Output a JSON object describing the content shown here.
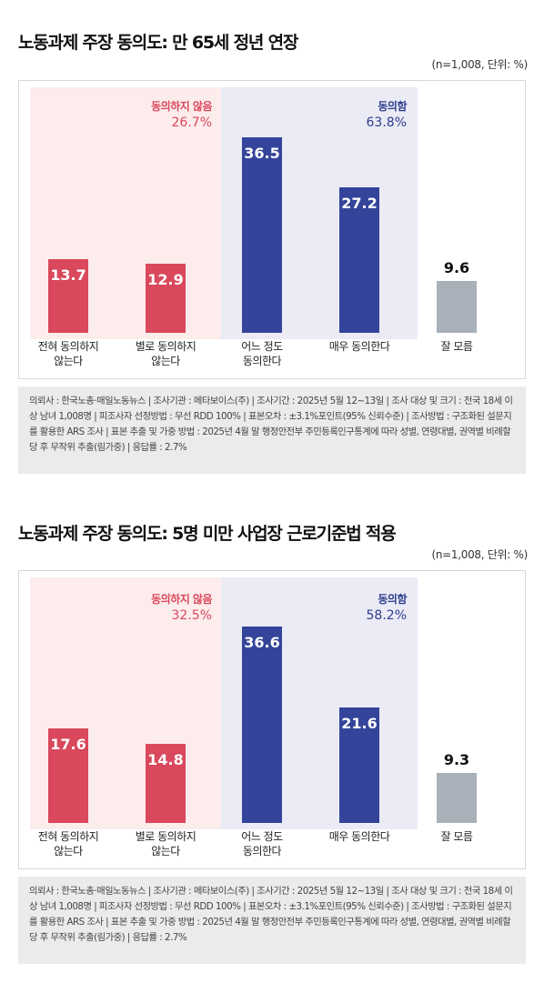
{
  "charts": [
    {
      "title": "노동과제 주장 동의도: 만 65세 정년 연장",
      "unit": "(n=1,008, 단위: %)",
      "disagree": {
        "label": "동의하지 않음",
        "pct": "26.7%"
      },
      "agree": {
        "label": "동의함",
        "pct": "63.8%"
      },
      "note": "의뢰사 : 한국노총·매일노동뉴스 | 조사기관 : 메타보이스(주) | 조사기간 : 2025년 5월 12~13일 | 조사 대상 및 크기 : 전국 18세 이상 남녀 1,008명 | 피조사자 선정방법 : 무선 RDD 100% | 표본오차 : ±3.1%포인트(95% 신뢰수준) | 조사방법 : 구조화된 설문지를 활용한 ARS 조사 | 표본 추출 및 가중 방법 : 2025년 4월 말 행정안전부 주민등록인구통계에 따라 성별, 연령대별, 권역별 비례할당 후 무작위 추출(림가중) | 응답률 : 2.7%"
    },
    {
      "title": "노동과제 주장 동의도: 5명 미만 사업장 근로기준법 적용",
      "unit": "(n=1,008, 단위: %)",
      "disagree": {
        "label": "동의하지 않음",
        "pct": "32.5%"
      },
      "agree": {
        "label": "동의함",
        "pct": "58.2%"
      },
      "note": "의뢰사 : 한국노총·매일노동뉴스 | 조사기관 : 메타보이스(주) | 조사기간 : 2025년 5월 12~13일 | 조사 대상 및 크기 : 전국 18세 이상 남녀 1,008명 | 피조사자 선정방법 : 무선 RDD 100% | 표본오차 : ±3.1%포인트(95% 신뢰수준) | 조사방법 : 구조화된 설문지를 활용한 ARS 조사 | 표본 추출 및 가중 방법 : 2025년 4월 말 행정안전부 주민등록인구통계에 따라 성별, 연령대별, 권역별 비례할당 후 무작위 추출(림가중) | 응답률 : 2.7%"
    }
  ],
  "colors": {
    "disagree": "#d9485c",
    "agree": "#34449a",
    "neutral": "#a8b0ba"
  },
  "chart_data": [
    {
      "type": "bar",
      "title": "노동과제 주장 동의도: 만 65세 정년 연장",
      "categories": [
        "전혀 동의하지 않는다",
        "별로 동의하지 않는다",
        "어느 정도 동의한다",
        "매우 동의한다",
        "잘 모름"
      ],
      "values": [
        13.7,
        12.9,
        36.5,
        27.2,
        9.6
      ],
      "value_labels": [
        "13.7",
        "12.9",
        "36.5",
        "27.2",
        "9.6"
      ],
      "ylim": [
        0,
        40
      ],
      "grid": false
    },
    {
      "type": "bar",
      "title": "노동과제 주장 동의도: 5명 미만 사업장 근로기준법 적용",
      "categories": [
        "전혀 동의하지 않는다",
        "별로 동의하지 않는다",
        "어느 정도 동의한다",
        "매우 동의한다",
        "잘 모름"
      ],
      "values": [
        17.6,
        14.8,
        36.6,
        21.6,
        9.3
      ],
      "value_labels": [
        "17.6",
        "14.8",
        "36.6",
        "21.6",
        "9.3"
      ],
      "ylim": [
        0,
        40
      ],
      "grid": false
    }
  ]
}
